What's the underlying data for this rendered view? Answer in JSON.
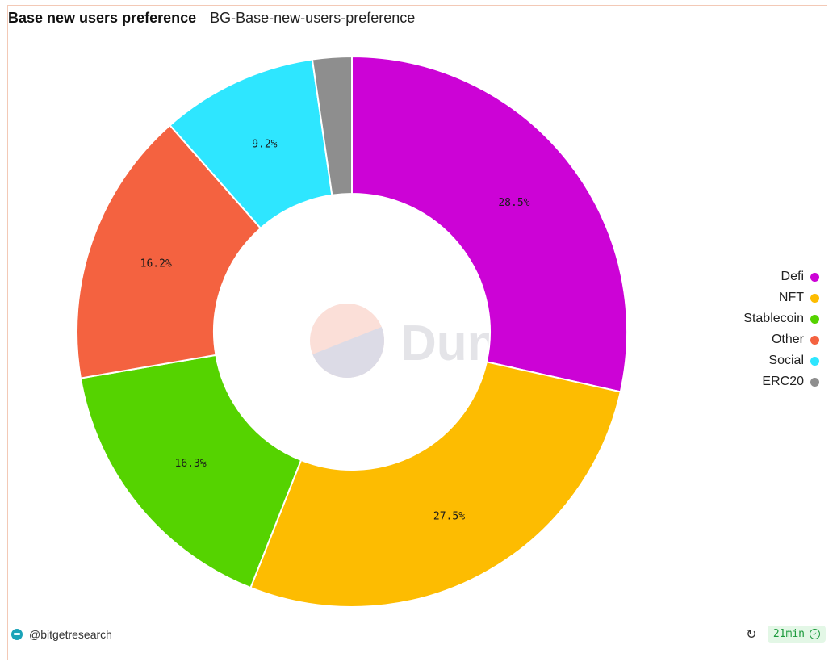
{
  "header": {
    "title": "Base new users preference",
    "subtitle": "BG-Base-new-users-preference"
  },
  "chart_data": {
    "type": "pie",
    "style": "donut",
    "categories": [
      "Defi",
      "NFT",
      "Stablecoin",
      "Other",
      "Social",
      "ERC20"
    ],
    "values": [
      28.5,
      27.5,
      16.3,
      16.2,
      9.2,
      2.3
    ],
    "labels": [
      "28.5%",
      "27.5%",
      "16.3%",
      "16.2%",
      "9.2%",
      ""
    ],
    "colors": [
      "#cc03d6",
      "#fdbc01",
      "#55d300",
      "#f46240",
      "#2ee6ff",
      "#8e8e8e"
    ],
    "legend_position": "right"
  },
  "legend": {
    "items": [
      {
        "label": "Defi",
        "color": "#cc03d6"
      },
      {
        "label": "NFT",
        "color": "#fdbc01"
      },
      {
        "label": "Stablecoin",
        "color": "#55d300"
      },
      {
        "label": "Other",
        "color": "#f46240"
      },
      {
        "label": "Social",
        "color": "#2ee6ff"
      },
      {
        "label": "ERC20",
        "color": "#8e8e8e"
      }
    ]
  },
  "watermark": {
    "text": "Dune"
  },
  "footer": {
    "author": "@bitgetresearch",
    "refresh_icon": "refresh-icon",
    "age": "21min",
    "status_icon": "check-circle-icon"
  }
}
